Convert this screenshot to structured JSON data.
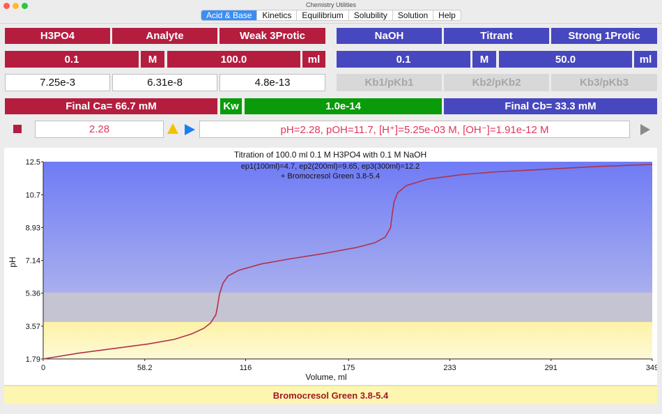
{
  "window": {
    "title": "Chemistry Utilities"
  },
  "tabs": [
    "Acid & Base",
    "Kinetics",
    "Equilibrium",
    "Solubility",
    "Solution",
    "Help"
  ],
  "analyte": {
    "name": "H3PO4",
    "role": "Analyte",
    "type": "Weak 3Protic",
    "conc": "0.1",
    "conc_unit": "M",
    "volume": "100.0",
    "volume_unit": "ml",
    "k1": "7.25e-3",
    "k2": "6.31e-8",
    "k3": "4.8e-13"
  },
  "titrant": {
    "name": "NaOH",
    "role": "Titrant",
    "type": "Strong 1Protic",
    "conc": "0.1",
    "conc_unit": "M",
    "volume": "50.0",
    "volume_unit": "ml",
    "k1": "Kb1/pKb1",
    "k2": "Kb2/pKb2",
    "k3": "Kb3/pKb3"
  },
  "final": {
    "ca": "Final Ca=  66.7 mM",
    "kw_label": "Kw",
    "kw_value": "1.0e-14",
    "cb": "Final Cb=  33.3 mM"
  },
  "status": {
    "ph_value": "2.28",
    "summary": "pH=2.28, pOH=11.7, [H⁺]=5.25e-03 M, [OH⁻]=1.91e-12 M"
  },
  "indicator_label": "Bromocresol Green 3.8-5.4",
  "colors": {
    "analyte": "#b51d3f",
    "titrant": "#4747bf",
    "kw": "#0a9b0a",
    "curve": "#b0304a"
  },
  "icons": {
    "stop": "stop-square-icon",
    "warning": "warning-triangle-icon",
    "play": "play-icon",
    "play_disabled": "play-gray-icon"
  },
  "chart_data": {
    "type": "line",
    "title": "Titration of 100.0 ml 0.1 M H3PO4 with 0.1 M NaOH",
    "subtitle": "ep1(100ml)=4.7, ep2(200ml)=9.65, ep3(300ml)=12.2",
    "annotation": "+ Bromocresol Green 3.8-5.4",
    "xlabel": "Volume,  ml",
    "ylabel": "pH",
    "xlim": [
      0,
      349
    ],
    "ylim": [
      1.79,
      12.5
    ],
    "xticks": [
      "0",
      "58.2",
      "116",
      "175",
      "233",
      "291",
      "349"
    ],
    "yticks": [
      "1.79",
      "3.57",
      "5.36",
      "7.14",
      "8.93",
      "10.7",
      "12.5"
    ],
    "indicator_band": [
      3.8,
      5.4
    ],
    "series": [
      {
        "x": [
          0,
          20,
          40,
          60,
          75,
          85,
          92,
          96,
          99,
          100,
          101,
          103,
          106,
          112,
          125,
          140,
          160,
          180,
          190,
          196,
          199,
          200,
          201,
          203,
          208,
          220,
          240,
          260,
          280,
          300,
          320,
          340,
          349
        ],
        "y": [
          1.79,
          2.1,
          2.35,
          2.6,
          2.85,
          3.15,
          3.45,
          3.75,
          4.2,
          4.7,
          5.3,
          5.9,
          6.3,
          6.6,
          6.95,
          7.2,
          7.5,
          7.85,
          8.1,
          8.4,
          8.9,
          9.65,
          10.3,
          10.8,
          11.2,
          11.55,
          11.8,
          11.95,
          12.05,
          12.15,
          12.25,
          12.32,
          12.35
        ]
      }
    ]
  }
}
